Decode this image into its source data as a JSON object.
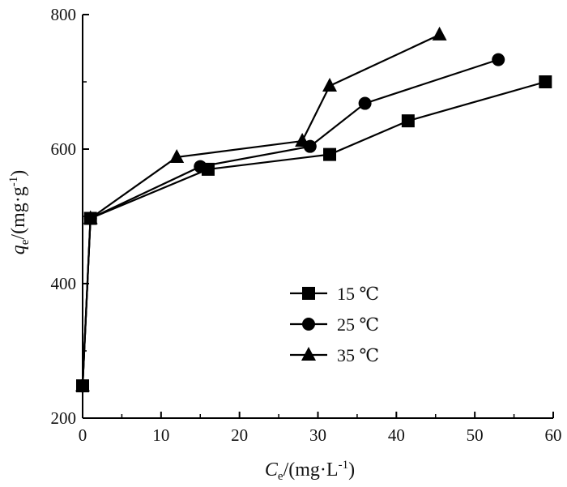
{
  "chart_data": {
    "type": "line",
    "title": "",
    "xlabel": {
      "main": "C",
      "sub": "e",
      "unit_prefix": "/(mg·L",
      "unit_sup": "-1",
      "unit_suffix": ")"
    },
    "ylabel": {
      "main": "q",
      "sub": "e",
      "unit_prefix": "/(mg·g",
      "unit_sup": "-1",
      "unit_suffix": ")"
    },
    "xlim": [
      0,
      60
    ],
    "ylim": [
      200,
      800
    ],
    "xticks": [
      0,
      10,
      20,
      30,
      40,
      50,
      60
    ],
    "yticks": [
      200,
      400,
      600,
      800
    ],
    "grid": false,
    "legend_position": "center",
    "series": [
      {
        "name": "15 ℃",
        "marker": "square",
        "x": [
          0,
          1,
          16,
          31.5,
          41.5,
          59
        ],
        "y": [
          248,
          497,
          570,
          592,
          642,
          700
        ]
      },
      {
        "name": "25 ℃",
        "marker": "circle",
        "x": [
          0,
          1,
          15,
          29,
          36,
          53
        ],
        "y": [
          248,
          497,
          574,
          604,
          668,
          733
        ]
      },
      {
        "name": "35 ℃",
        "marker": "triangle",
        "x": [
          0,
          1,
          12,
          28,
          31.5,
          45.5
        ],
        "y": [
          248,
          497,
          588,
          612,
          694,
          770
        ]
      }
    ]
  }
}
